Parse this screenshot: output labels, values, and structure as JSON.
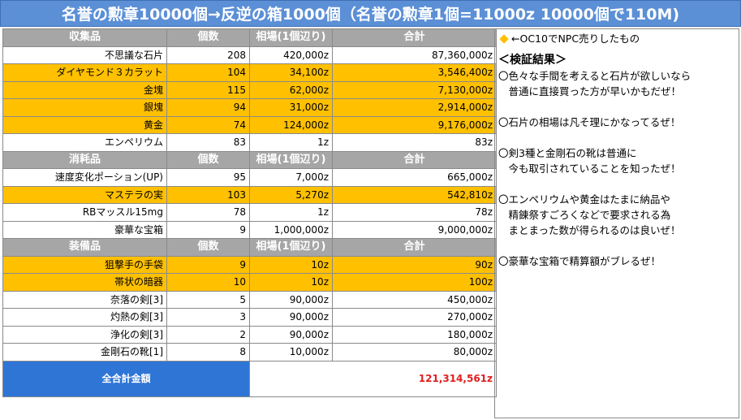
{
  "title": "名誉の勲章10000個→反逆の箱1000個（名誉の勲章1個=11000z 10000個で110M)",
  "sections": [
    {
      "headers": [
        "収集品",
        "個数",
        "相場(1個辺り)",
        "合計"
      ],
      "rows": [
        {
          "name": "不思議な石片",
          "qty": "208",
          "price": "420,000z",
          "total": "87,360,000z",
          "highlight": false
        },
        {
          "name": "ダイヤモンド３カラット",
          "qty": "104",
          "price": "34,100z",
          "total": "3,546,400z",
          "highlight": true
        },
        {
          "name": "金塊",
          "qty": "115",
          "price": "62,000z",
          "total": "7,130,000z",
          "highlight": true
        },
        {
          "name": "銀塊",
          "qty": "94",
          "price": "31,000z",
          "total": "2,914,000z",
          "highlight": true
        },
        {
          "name": "黄金",
          "qty": "74",
          "price": "124,000z",
          "total": "9,176,000z",
          "highlight": true
        },
        {
          "name": "エンペリウム",
          "qty": "83",
          "price": "1z",
          "total": "83z",
          "highlight": false
        }
      ]
    },
    {
      "headers": [
        "消耗品",
        "個数",
        "相場(1個辺り)",
        "合計"
      ],
      "rows": [
        {
          "name": "速度変化ポーション(UP)",
          "qty": "95",
          "price": "7,000z",
          "total": "665,000z",
          "highlight": false
        },
        {
          "name": "マステラの実",
          "qty": "103",
          "price": "5,270z",
          "total": "542,810z",
          "highlight": true
        },
        {
          "name": "RBマッスル15mg",
          "qty": "78",
          "price": "1z",
          "total": "78z",
          "highlight": false
        },
        {
          "name": "豪華な宝箱",
          "qty": "9",
          "price": "1,000,000z",
          "total": "9,000,000z",
          "highlight": false
        }
      ]
    },
    {
      "headers": [
        "装備品",
        "個数",
        "相場(1個辺り)",
        "合計"
      ],
      "rows": [
        {
          "name": "狙撃手の手袋",
          "qty": "9",
          "price": "10z",
          "total": "90z",
          "highlight": true
        },
        {
          "name": "帯状の暗器",
          "qty": "10",
          "price": "10z",
          "total": "100z",
          "highlight": true
        },
        {
          "name": "奈落の剣[3]",
          "qty": "5",
          "price": "90,000z",
          "total": "450,000z",
          "highlight": false
        },
        {
          "name": "灼熱の剣[3]",
          "qty": "3",
          "price": "90,000z",
          "total": "270,000z",
          "highlight": false
        },
        {
          "name": "浄化の剣[3]",
          "qty": "2",
          "price": "90,000z",
          "total": "180,000z",
          "highlight": false
        },
        {
          "name": "金剛石の靴[1]",
          "qty": "8",
          "price": "10,000z",
          "total": "80,000z",
          "highlight": false
        }
      ]
    }
  ],
  "grand_total": {
    "label": "全合計金額",
    "value": "121,314,561z"
  },
  "notes": {
    "legend": "←OC10でNPC売りしたもの",
    "legend_color": "#ffc000",
    "heading": "＜検証結果＞",
    "items": [
      "〇色々な手間を考えると石片が欲しいなら\n　普通に直接買った方が早いかもだぜ！",
      "〇石片の相場は凡そ理にかなってるぜ！",
      "〇剣3種と金剛石の靴は普通に\n　今も取引されていることを知ったぜ！",
      "〇エンペリウムや黄金はたまに納品や\n　精錬祭すごろくなどで要求される為\n　まとまった数が得られるのは良いぜ！",
      "〇豪華な宝箱で精算額がブレるぜ！"
    ]
  }
}
